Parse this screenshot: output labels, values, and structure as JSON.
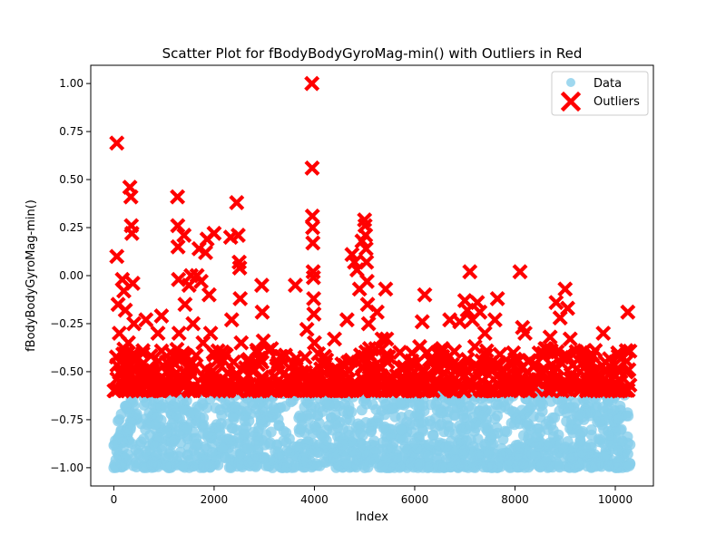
{
  "chart_data": {
    "type": "scatter",
    "title": "Scatter Plot for fBodyBodyGyroMag-min() with Outliers in Red",
    "xlabel": "Index",
    "ylabel": "fBodyBodyGyroMag-min()",
    "xlim": [
      -460,
      10760
    ],
    "ylim": [
      -1.095,
      1.095
    ],
    "x_ticks": [
      0,
      2000,
      4000,
      6000,
      8000,
      10000
    ],
    "x_tick_labels": [
      "0",
      "2000",
      "4000",
      "6000",
      "8000",
      "10000"
    ],
    "y_ticks": [
      -1.0,
      -0.75,
      -0.5,
      -0.25,
      0.0,
      0.25,
      0.5,
      0.75,
      1.0
    ],
    "y_tick_labels": [
      "−1.00",
      "−0.75",
      "−0.50",
      "−0.25",
      "0.00",
      "0.25",
      "0.50",
      "0.75",
      "1.00"
    ],
    "legend_position": "top-right",
    "grid": false,
    "data_band": {
      "x_range": [
        0,
        10298
      ],
      "y_range": [
        -1.0,
        -0.6
      ]
    },
    "series": [
      {
        "name": "Data",
        "marker": "circle",
        "color": "#87ceeb",
        "points": [
          [
            0,
            -1.0
          ],
          [
            40,
            -0.96
          ],
          [
            75,
            -0.85
          ],
          [
            110,
            -0.75
          ],
          [
            150,
            -0.98
          ],
          [
            190,
            -0.9
          ],
          [
            230,
            -0.68
          ],
          [
            280,
            -0.93
          ],
          [
            330,
            -0.8
          ],
          [
            390,
            -0.99
          ],
          [
            460,
            -0.72
          ],
          [
            520,
            -0.88
          ],
          [
            590,
            -0.95
          ],
          [
            650,
            -0.66
          ],
          [
            720,
            -0.83
          ],
          [
            800,
            -0.97
          ],
          [
            880,
            -0.74
          ],
          [
            960,
            -0.91
          ],
          [
            1040,
            -0.99
          ],
          [
            1120,
            -0.7
          ],
          [
            1200,
            -0.86
          ],
          [
            1290,
            -0.94
          ],
          [
            1380,
            -0.64
          ],
          [
            1460,
            -0.79
          ],
          [
            1540,
            -0.96
          ],
          [
            1620,
            -0.88
          ],
          [
            1700,
            -0.69
          ],
          [
            1790,
            -0.99
          ],
          [
            1880,
            -0.82
          ],
          [
            1960,
            -0.92
          ],
          [
            2050,
            -0.62
          ],
          [
            2140,
            -0.77
          ],
          [
            2230,
            -0.95
          ],
          [
            2320,
            -0.86
          ],
          [
            2400,
            -0.68
          ],
          [
            2490,
            -0.98
          ],
          [
            2580,
            -0.8
          ],
          [
            2670,
            -0.9
          ],
          [
            2760,
            -0.66
          ],
          [
            2850,
            -0.94
          ],
          [
            2940,
            -0.75
          ],
          [
            3030,
            -0.99
          ],
          [
            3120,
            -0.87
          ],
          [
            3210,
            -0.7
          ],
          [
            3300,
            -0.93
          ],
          [
            3390,
            -0.81
          ],
          [
            3480,
            -0.97
          ],
          [
            3570,
            -0.65
          ],
          [
            3660,
            -0.89
          ],
          [
            3750,
            -0.78
          ],
          [
            3840,
            -0.96
          ],
          [
            3930,
            -0.72
          ],
          [
            4020,
            -0.91
          ],
          [
            4110,
            -0.99
          ],
          [
            4200,
            -0.84
          ],
          [
            4290,
            -0.67
          ],
          [
            4380,
            -0.95
          ],
          [
            4470,
            -0.79
          ],
          [
            4560,
            -0.88
          ],
          [
            4650,
            -0.98
          ],
          [
            4740,
            -0.71
          ],
          [
            4830,
            -0.93
          ],
          [
            4920,
            -0.82
          ],
          [
            5010,
            -0.64
          ],
          [
            5100,
            -0.97
          ],
          [
            5190,
            -0.86
          ],
          [
            5280,
            -0.74
          ],
          [
            5370,
            -0.99
          ],
          [
            5460,
            -0.9
          ],
          [
            5550,
            -0.69
          ],
          [
            5640,
            -0.95
          ],
          [
            5730,
            -0.8
          ],
          [
            5820,
            -0.92
          ],
          [
            5910,
            -0.66
          ],
          [
            6000,
            -0.87
          ],
          [
            6090,
            -0.98
          ],
          [
            6180,
            -0.76
          ],
          [
            6270,
            -0.94
          ],
          [
            6360,
            -0.83
          ],
          [
            6450,
            -0.7
          ],
          [
            6540,
            -0.99
          ],
          [
            6630,
            -0.89
          ],
          [
            6720,
            -0.65
          ],
          [
            6810,
            -0.96
          ],
          [
            6900,
            -0.78
          ],
          [
            6990,
            -0.91
          ],
          [
            7080,
            -0.68
          ],
          [
            7170,
            -0.97
          ],
          [
            7260,
            -0.85
          ],
          [
            7350,
            -0.73
          ],
          [
            7440,
            -0.99
          ],
          [
            7530,
            -0.88
          ],
          [
            7620,
            -0.67
          ],
          [
            7710,
            -0.94
          ],
          [
            7800,
            -0.81
          ],
          [
            7890,
            -0.96
          ],
          [
            7980,
            -0.71
          ],
          [
            8070,
            -0.9
          ],
          [
            8160,
            -0.98
          ],
          [
            8250,
            -0.77
          ],
          [
            8340,
            -0.93
          ],
          [
            8430,
            -0.84
          ],
          [
            8520,
            -0.66
          ],
          [
            8610,
            -0.97
          ],
          [
            8700,
            -0.87
          ],
          [
            8790,
            -0.74
          ],
          [
            8880,
            -0.99
          ],
          [
            8970,
            -0.9
          ],
          [
            9060,
            -0.69
          ],
          [
            9150,
            -0.95
          ],
          [
            9240,
            -0.8
          ],
          [
            9330,
            -0.92
          ],
          [
            9420,
            -0.64
          ],
          [
            9510,
            -0.88
          ],
          [
            9600,
            -0.98
          ],
          [
            9690,
            -0.76
          ],
          [
            9780,
            -0.94
          ],
          [
            9870,
            -0.83
          ],
          [
            9960,
            -0.7
          ],
          [
            10050,
            -0.97
          ],
          [
            10140,
            -0.86
          ],
          [
            10220,
            -0.73
          ],
          [
            10280,
            -0.99
          ],
          [
            10295,
            -0.88
          ]
        ]
      },
      {
        "name": "Outliers",
        "marker": "x",
        "color": "#ff0000",
        "points": [
          [
            60,
            0.69
          ],
          [
            60,
            0.1
          ],
          [
            85,
            -0.15
          ],
          [
            110,
            -0.3
          ],
          [
            130,
            -0.45
          ],
          [
            170,
            -0.02
          ],
          [
            200,
            -0.08
          ],
          [
            230,
            -0.18
          ],
          [
            260,
            -0.5
          ],
          [
            290,
            -0.35
          ],
          [
            320,
            0.46
          ],
          [
            340,
            0.41
          ],
          [
            350,
            0.26
          ],
          [
            360,
            0.22
          ],
          [
            380,
            -0.04
          ],
          [
            400,
            -0.25
          ],
          [
            430,
            -0.42
          ],
          [
            500,
            -0.55
          ],
          [
            640,
            -0.23
          ],
          [
            700,
            -0.48
          ],
          [
            760,
            -0.55
          ],
          [
            880,
            -0.3
          ],
          [
            950,
            -0.21
          ],
          [
            1050,
            -0.45
          ],
          [
            1130,
            -0.4
          ],
          [
            1180,
            -0.55
          ],
          [
            1270,
            0.41
          ],
          [
            1275,
            0.26
          ],
          [
            1280,
            0.15
          ],
          [
            1290,
            -0.02
          ],
          [
            1300,
            -0.3
          ],
          [
            1340,
            -0.55
          ],
          [
            1400,
            0.21
          ],
          [
            1420,
            -0.15
          ],
          [
            1460,
            -0.42
          ],
          [
            1500,
            -0.05
          ],
          [
            1540,
            0.0
          ],
          [
            1580,
            -0.25
          ],
          [
            1610,
            -0.48
          ],
          [
            1660,
            0.0
          ],
          [
            1700,
            0.14
          ],
          [
            1740,
            -0.03
          ],
          [
            1780,
            -0.35
          ],
          [
            1830,
            0.12
          ],
          [
            1860,
            0.19
          ],
          [
            1900,
            -0.1
          ],
          [
            1930,
            -0.3
          ],
          [
            1960,
            -0.5
          ],
          [
            2000,
            0.22
          ],
          [
            2040,
            -0.55
          ],
          [
            2330,
            0.2
          ],
          [
            2350,
            -0.23
          ],
          [
            2390,
            -0.45
          ],
          [
            2450,
            0.38
          ],
          [
            2480,
            0.21
          ],
          [
            2500,
            0.07
          ],
          [
            2510,
            0.04
          ],
          [
            2520,
            -0.12
          ],
          [
            2540,
            -0.35
          ],
          [
            2600,
            -0.55
          ],
          [
            2780,
            -0.5
          ],
          [
            2900,
            -0.43
          ],
          [
            2950,
            -0.05
          ],
          [
            2960,
            -0.19
          ],
          [
            2980,
            -0.34
          ],
          [
            3100,
            -0.58
          ],
          [
            3500,
            -0.48
          ],
          [
            3620,
            -0.05
          ],
          [
            3850,
            -0.28
          ],
          [
            3900,
            -0.52
          ],
          [
            3950,
            1.0
          ],
          [
            3955,
            0.56
          ],
          [
            3960,
            0.31
          ],
          [
            3965,
            0.25
          ],
          [
            3970,
            0.17
          ],
          [
            3975,
            0.02
          ],
          [
            3980,
            -0.01
          ],
          [
            3985,
            -0.12
          ],
          [
            3990,
            -0.2
          ],
          [
            4000,
            -0.35
          ],
          [
            4050,
            -0.55
          ],
          [
            4200,
            -0.42
          ],
          [
            4400,
            -0.33
          ],
          [
            4550,
            -0.46
          ],
          [
            4650,
            -0.23
          ],
          [
            4750,
            0.11
          ],
          [
            4800,
            0.07
          ],
          [
            4850,
            0.03
          ],
          [
            4900,
            -0.07
          ],
          [
            4950,
            0.18
          ],
          [
            5000,
            0.29
          ],
          [
            5010,
            0.26
          ],
          [
            5020,
            0.21
          ],
          [
            5030,
            0.14
          ],
          [
            5040,
            0.07
          ],
          [
            5050,
            -0.03
          ],
          [
            5060,
            -0.15
          ],
          [
            5080,
            -0.25
          ],
          [
            5100,
            -0.38
          ],
          [
            5150,
            -0.52
          ],
          [
            5250,
            -0.19
          ],
          [
            5350,
            -0.33
          ],
          [
            5420,
            -0.07
          ],
          [
            5440,
            -0.33
          ],
          [
            5460,
            -0.45
          ],
          [
            5550,
            -0.58
          ],
          [
            6100,
            -0.37
          ],
          [
            6150,
            -0.24
          ],
          [
            6200,
            -0.1
          ],
          [
            6250,
            -0.4
          ],
          [
            6350,
            -0.45
          ],
          [
            6550,
            -0.38
          ],
          [
            6700,
            -0.23
          ],
          [
            6900,
            -0.24
          ],
          [
            7000,
            -0.13
          ],
          [
            7050,
            -0.18
          ],
          [
            7100,
            0.02
          ],
          [
            7150,
            -0.23
          ],
          [
            7200,
            -0.37
          ],
          [
            7250,
            -0.14
          ],
          [
            7300,
            -0.19
          ],
          [
            7400,
            -0.3
          ],
          [
            7600,
            -0.23
          ],
          [
            7650,
            -0.12
          ],
          [
            7700,
            -0.41
          ],
          [
            7850,
            -0.55
          ],
          [
            8100,
            0.02
          ],
          [
            8150,
            -0.27
          ],
          [
            8200,
            -0.3
          ],
          [
            8400,
            -0.46
          ],
          [
            8500,
            -0.51
          ],
          [
            8600,
            -0.38
          ],
          [
            8700,
            -0.32
          ],
          [
            8820,
            -0.14
          ],
          [
            8900,
            -0.22
          ],
          [
            9000,
            -0.07
          ],
          [
            9050,
            -0.17
          ],
          [
            9100,
            -0.33
          ],
          [
            9300,
            -0.5
          ],
          [
            9600,
            -0.39
          ],
          [
            9700,
            -0.53
          ],
          [
            9760,
            -0.3
          ],
          [
            9800,
            -0.45
          ],
          [
            10100,
            -0.55
          ],
          [
            10250,
            -0.19
          ],
          [
            10270,
            -0.49
          ],
          [
            10290,
            -0.57
          ]
        ]
      }
    ]
  }
}
